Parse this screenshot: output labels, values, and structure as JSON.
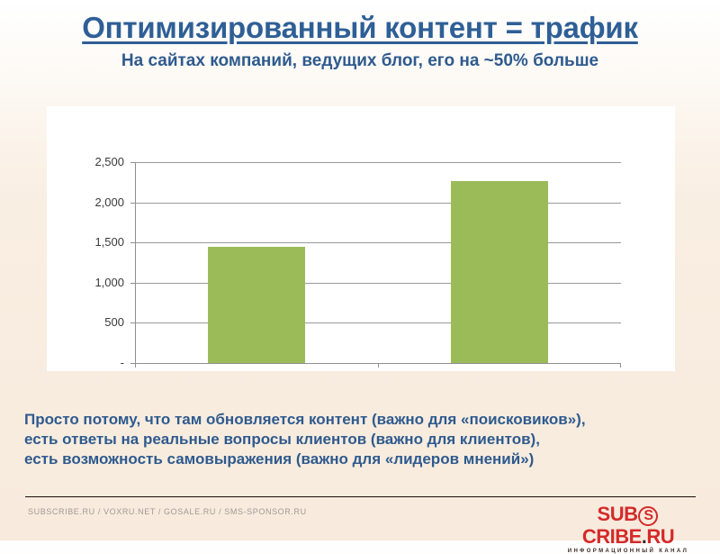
{
  "slide": {
    "title": "Оптимизированный контент = трафик",
    "subtitle": "На сайтах компаний, ведущих блог, его на ~50% больше",
    "body_lines": [
      "Просто потому, что там обновляется контент (важно для «поисковиков»),",
      "есть ответы на реальные вопросы клиентов (важно для клиентов),",
      "есть возможность самовыражения (важно для «лидеров мнений»)"
    ],
    "footer": {
      "links": "SUBSCRIBE.RU / VOXRU.NET / GOSALE.RU / SMS-SPONSOR.RU",
      "logo": {
        "part1": "SUB",
        "circle_letter": "S",
        "part2": "CRIBE",
        "dot": ".",
        "part3": "RU",
        "tagline": "ИНФОРМАЦИОННЫЙ КАНАЛ"
      }
    },
    "colors": {
      "title": "#2e5f96",
      "bar": "#9bbb59",
      "logo_red": "#d42a2a"
    }
  },
  "chart_data": {
    "type": "bar",
    "title": "",
    "xlabel": "",
    "ylabel": "",
    "categories": [
      "",
      ""
    ],
    "values": [
      1450,
      2265
    ],
    "ylim": [
      0,
      2500
    ],
    "yticks": [
      0,
      500,
      1000,
      1500,
      2000,
      2500
    ],
    "ytick_labels": [
      "-",
      "500",
      "1,000",
      "1,500",
      "2,000",
      "2,500"
    ],
    "grid": true,
    "legend": "none",
    "bar_color": "#9bbb59"
  }
}
